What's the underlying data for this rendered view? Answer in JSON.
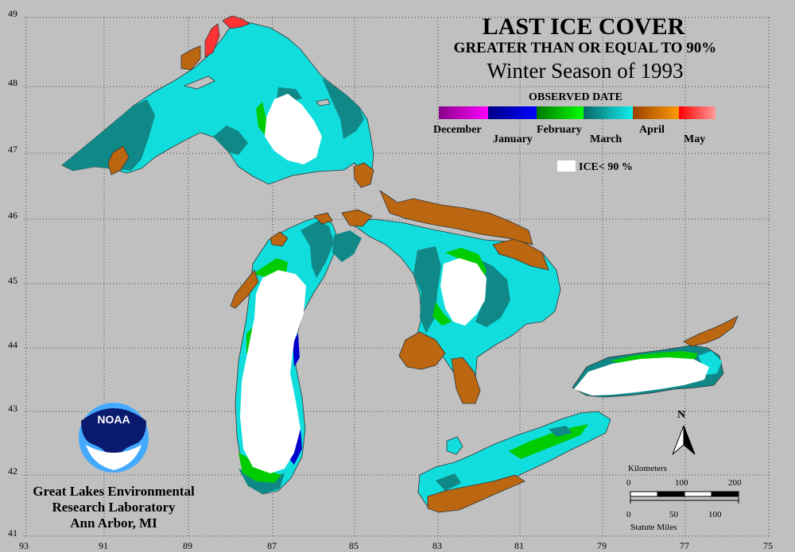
{
  "title": {
    "line1": "LAST ICE COVER",
    "line2": "GREATER THAN OR EQUAL TO 90%",
    "line3": "Winter Season of 1993"
  },
  "legend": {
    "heading": "OBSERVED DATE",
    "months_upper": [
      "December",
      "February",
      "April"
    ],
    "months_lower": [
      "January",
      "March",
      "May"
    ],
    "ice_label": "ICE< 90 %",
    "colors": {
      "december": "#cc00cc",
      "january": "#0000cc",
      "february": "#00cc00",
      "march_early": "#118888",
      "march_late": "#11dddd",
      "april": "#bb6611",
      "may": "#ff3333",
      "ice_lt_90": "#ffffff"
    }
  },
  "axes": {
    "longitude_labels": [
      "93",
      "91",
      "89",
      "87",
      "85",
      "83",
      "81",
      "79",
      "77",
      "75"
    ],
    "latitude_labels": [
      "49",
      "48",
      "47",
      "46",
      "45",
      "44",
      "43",
      "42",
      "41"
    ]
  },
  "north_arrow": {
    "label": "N"
  },
  "scale_bar": {
    "km_title": "Kilometers",
    "km_ticks": [
      "0",
      "100",
      "200"
    ],
    "mi_ticks": [
      "0",
      "50",
      "100"
    ],
    "mi_title": "Statute Miles"
  },
  "logo": {
    "text": "NOAA"
  },
  "organization": {
    "line1": "Great Lakes Environmental",
    "line2": "Research Laboratory",
    "line3": "Ann Arbor, MI"
  }
}
